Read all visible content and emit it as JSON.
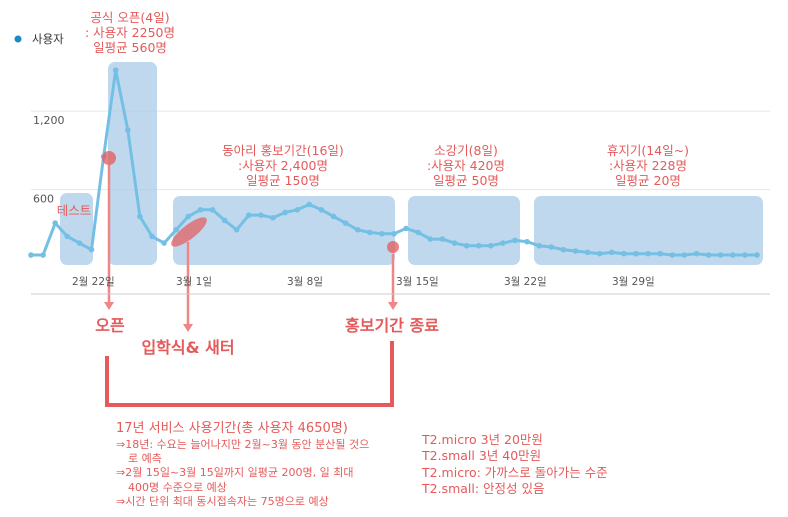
{
  "chart_data": {
    "type": "line",
    "legend": {
      "label": "사용자",
      "placement": "top-left",
      "color": "#1a8ac7"
    },
    "y_ticks": [
      "1,200",
      "600"
    ],
    "ylim": [
      0,
      1400
    ],
    "x_tick_labels": [
      "2월 22일",
      "3월 1일",
      "3월 8일",
      "3월 15일",
      "3월 22일",
      "3월 29일"
    ],
    "x_tick_index": [
      2,
      9,
      16,
      23,
      30,
      37
    ],
    "series": [
      {
        "values": [
          60,
          60,
          300,
          200,
          150,
          100,
          800,
          1450,
          1000,
          350,
          200,
          150,
          250,
          350,
          400,
          400,
          320,
          250,
          360,
          360,
          340,
          380,
          400,
          440,
          400,
          350,
          300,
          250,
          230,
          220,
          220,
          260,
          230,
          180,
          180,
          150,
          130,
          130,
          130,
          150,
          170,
          160,
          130,
          120,
          100,
          90,
          80,
          70,
          80,
          70,
          70,
          70,
          70,
          60,
          60,
          70,
          60,
          60,
          60,
          60,
          60
        ]
      }
    ],
    "point_index_map_note": "",
    "color": "#74c0e4",
    "highlight_color": "#e55a5a",
    "periods": [
      {
        "from": 2,
        "to": 4,
        "lines": [
          "테스트"
        ],
        "label_color": "#e55a5a"
      },
      {
        "from": 6,
        "to": 9,
        "lines": [
          "공식 오픈(4일)",
          ": 사용자 2250명",
          "일평균 560명"
        ],
        "label_color": "#e55a5a"
      },
      {
        "from": 11,
        "to": 27,
        "lines": [
          "동아리 홍보기간(16일)",
          ":사용자 2,400명",
          "일평균 150명"
        ],
        "label_color": "#e55a5a"
      },
      {
        "from": 28,
        "to": 35,
        "lines": [
          "소강기(8일)",
          ":사용자 420명",
          "일평균 50명"
        ],
        "label_color": "#e55a5a"
      },
      {
        "from": 36,
        "to": 60,
        "lines": [
          "휴지기(14일~)",
          ":사용자 228명",
          "일평균 20명"
        ],
        "label_color": "#e55a5a"
      }
    ],
    "markers": [
      {
        "label": "오픈"
      },
      {
        "label": "입학식& 새터"
      },
      {
        "label": "홍보기간 종료"
      }
    ]
  },
  "notes": {
    "summary": {
      "title": "17년 서비스 사용기간(총 사용자 4650명)",
      "lines": [
        "⇒18년: 수요는 늘어나지만 2월~3월 동안 분산될 것으",
        "로 예측",
        "⇒2월 15일~3월 15일까지 일평균 200명, 일 최대",
        "400명 수준으로 예상",
        "⇒시간 단위 최대 동시접속자는 75명으로 예상"
      ]
    },
    "pricing": [
      "T2.micro 3년 20만원",
      "T2.small 3년 40만원",
      "T2.micro: 가까스로 돌아가는 수준",
      "T2.small: 안정성 있음"
    ]
  }
}
